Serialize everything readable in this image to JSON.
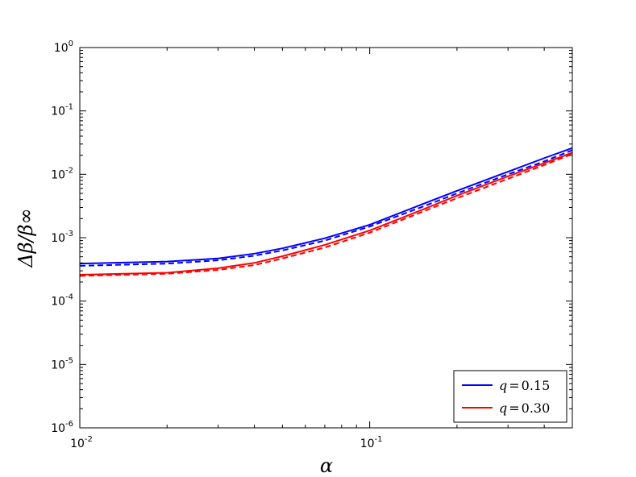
{
  "chart_data": {
    "type": "line",
    "xscale": "log",
    "yscale": "log",
    "xlim": [
      0.01,
      0.5
    ],
    "ylim": [
      1e-06,
      1
    ],
    "grid": false,
    "xlabel": "α",
    "ylabel": "Δβ/β∞",
    "x_ticks": [
      {
        "value": 0.01,
        "base": "10",
        "exp": "-2"
      },
      {
        "value": 0.1,
        "base": "10",
        "exp": "-1"
      }
    ],
    "y_ticks": [
      {
        "value": 1,
        "base": "10",
        "exp": "0"
      },
      {
        "value": 0.1,
        "base": "10",
        "exp": "-1"
      },
      {
        "value": 0.01,
        "base": "10",
        "exp": "-2"
      },
      {
        "value": 0.001,
        "base": "10",
        "exp": "-3"
      },
      {
        "value": 0.0001,
        "base": "10",
        "exp": "-4"
      },
      {
        "value": 1e-05,
        "base": "10",
        "exp": "-5"
      },
      {
        "value": 1e-06,
        "base": "10",
        "exp": "-6"
      }
    ],
    "legend": {
      "placement": "bottom-right",
      "entries": [
        {
          "var": "q",
          "eq": "=",
          "val": "0.15",
          "color": "#0000ff"
        },
        {
          "var": "q",
          "eq": "=",
          "val": "0.30",
          "color": "#ff0000"
        }
      ]
    },
    "series": [
      {
        "color": "#0000ff",
        "style": "solid",
        "x": [
          0.01,
          0.02,
          0.03,
          0.04,
          0.05,
          0.07,
          0.1,
          0.15,
          0.2,
          0.3,
          0.4,
          0.5
        ],
        "y": [
          0.00039,
          0.00042,
          0.00047,
          0.00056,
          0.00068,
          0.00098,
          0.0016,
          0.0033,
          0.0055,
          0.011,
          0.018,
          0.026
        ]
      },
      {
        "color": "#0000ff",
        "style": "dashed",
        "x": [
          0.01,
          0.02,
          0.03,
          0.04,
          0.05,
          0.07,
          0.1,
          0.15,
          0.2,
          0.3,
          0.4,
          0.5
        ],
        "y": [
          0.00036,
          0.00039,
          0.00044,
          0.00052,
          0.00063,
          0.0009,
          0.0015,
          0.003,
          0.005,
          0.01,
          0.016,
          0.024
        ]
      },
      {
        "color": "#ff0000",
        "style": "solid",
        "x": [
          0.01,
          0.02,
          0.03,
          0.04,
          0.05,
          0.07,
          0.1,
          0.15,
          0.2,
          0.3,
          0.4,
          0.5
        ],
        "y": [
          0.00026,
          0.00028,
          0.00033,
          0.0004,
          0.00051,
          0.00077,
          0.0013,
          0.0027,
          0.0046,
          0.0093,
          0.015,
          0.022
        ]
      },
      {
        "color": "#ff0000",
        "style": "dashed",
        "x": [
          0.01,
          0.02,
          0.03,
          0.04,
          0.05,
          0.07,
          0.1,
          0.15,
          0.2,
          0.3,
          0.4,
          0.5
        ],
        "y": [
          0.00025,
          0.00027,
          0.00031,
          0.00037,
          0.00047,
          0.0007,
          0.0012,
          0.0025,
          0.0042,
          0.0085,
          0.014,
          0.021
        ]
      }
    ]
  }
}
